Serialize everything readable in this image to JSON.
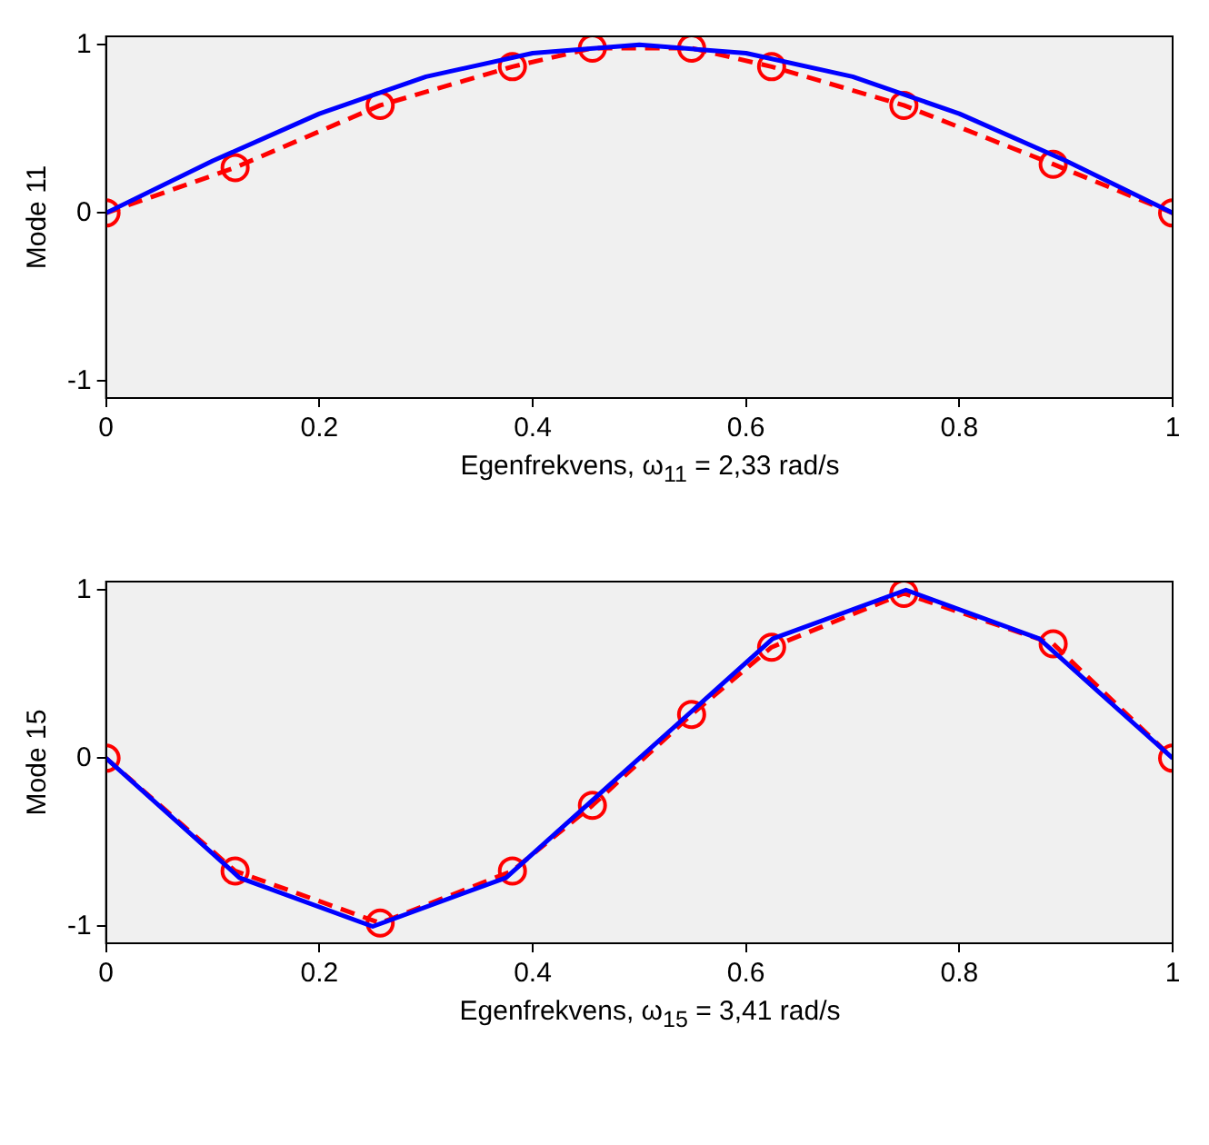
{
  "chart_data": [
    {
      "type": "line",
      "ylabel": "Mode 11",
      "xlabel": "Egenfrekvens, ω$_{11}$ = 2,33 rad/s",
      "xlim": [
        0,
        1
      ],
      "ylim": [
        -1.1,
        1.05
      ],
      "xticks": [
        0,
        0.2,
        0.4,
        0.6,
        0.8,
        1
      ],
      "yticks": [
        -1,
        0,
        1
      ],
      "grid": false,
      "legend": false,
      "series": [
        {
          "color": "#0000ff",
          "marker": "none",
          "line_style": "solid",
          "x": [
            0,
            0.1,
            0.2,
            0.3,
            0.4,
            0.5,
            0.6,
            0.7,
            0.8,
            0.9,
            1
          ],
          "values": [
            0,
            0.31,
            0.59,
            0.81,
            0.95,
            1,
            0.95,
            0.81,
            0.59,
            0.31,
            0
          ]
        },
        {
          "color": "#ff0000",
          "marker": "circle",
          "line_style": "dashed",
          "x": [
            0,
            0.121,
            0.257,
            0.381,
            0.456,
            0.549,
            0.624,
            0.748,
            0.888,
            1
          ],
          "values": [
            0,
            0.27,
            0.64,
            0.87,
            0.98,
            0.98,
            0.87,
            0.64,
            0.29,
            0
          ]
        }
      ]
    },
    {
      "type": "line",
      "ylabel": "Mode 15",
      "xlabel": "Egenfrekvens, ω$_{15}$ = 3,41 rad/s",
      "xlim": [
        0,
        1
      ],
      "ylim": [
        -1.1,
        1.05
      ],
      "xticks": [
        0,
        0.2,
        0.4,
        0.6,
        0.8,
        1
      ],
      "yticks": [
        -1,
        0,
        1
      ],
      "grid": false,
      "legend": false,
      "series": [
        {
          "color": "#0000ff",
          "marker": "none",
          "line_style": "solid",
          "x": [
            0,
            0.125,
            0.25,
            0.375,
            0.5,
            0.625,
            0.75,
            0.875,
            1
          ],
          "values": [
            0,
            -0.71,
            -1,
            -0.71,
            0,
            0.71,
            1,
            0.71,
            0
          ]
        },
        {
          "color": "#ff0000",
          "marker": "circle",
          "line_style": "dashed",
          "x": [
            0,
            0.121,
            0.257,
            0.381,
            0.456,
            0.549,
            0.624,
            0.748,
            0.888,
            1
          ],
          "values": [
            0,
            -0.67,
            -0.98,
            -0.67,
            -0.28,
            0.26,
            0.66,
            0.98,
            0.68,
            0
          ]
        }
      ]
    }
  ]
}
